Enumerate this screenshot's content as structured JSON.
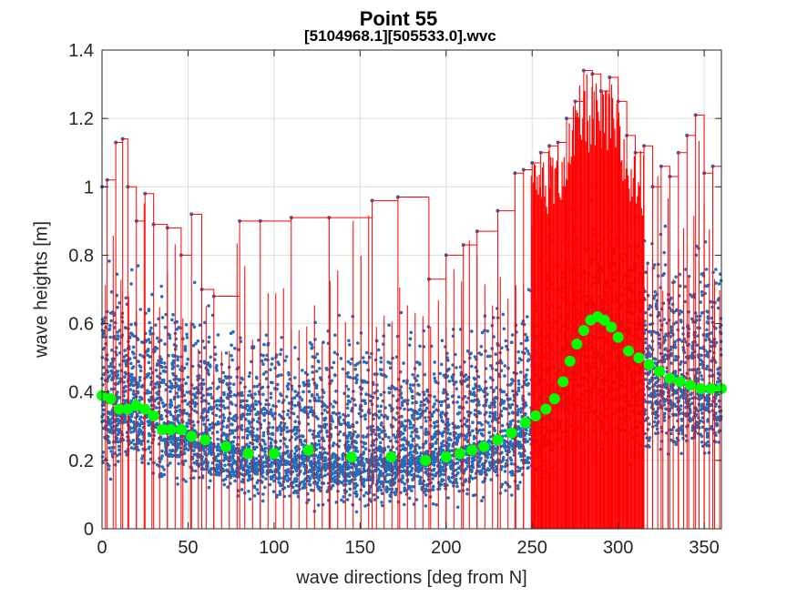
{
  "chart_data": {
    "type": "scatter",
    "title": "Point 55",
    "title_sub": "[5104968.1][505533.0].wvc",
    "xlabel": "wave directions [deg from N]",
    "ylabel": "wave heights [m]",
    "xlim": [
      0,
      360
    ],
    "ylim": [
      0,
      1.4
    ],
    "xticks": [
      "0",
      "50",
      "100",
      "150",
      "200",
      "250",
      "300",
      "350"
    ],
    "yticks": [
      "0",
      "0.2",
      "0.4",
      "0.6",
      "0.8",
      "1",
      "1.2",
      "1.4"
    ],
    "grid": true,
    "colors": {
      "scatter": "#1f6fbf",
      "max_envelope": "#ff0000",
      "mean_curve": "#00ff00",
      "axes": "#262626",
      "grid": "#dcdcdc"
    },
    "series": [
      {
        "role": "scatter",
        "density_profile": {
          "x": [
            0,
            30,
            60,
            90,
            120,
            150,
            180,
            210,
            240,
            260,
            280,
            300,
            320,
            340,
            360
          ],
          "low": [
            0.1,
            0.1,
            0.07,
            0.05,
            0.04,
            0.03,
            0.04,
            0.05,
            0.07,
            0.09,
            0.12,
            0.13,
            0.15,
            0.14,
            0.14
          ],
          "mean": [
            0.39,
            0.34,
            0.26,
            0.22,
            0.22,
            0.21,
            0.21,
            0.24,
            0.28,
            0.36,
            0.56,
            0.54,
            0.46,
            0.42,
            0.41
          ],
          "high": [
            0.85,
            0.8,
            0.72,
            0.65,
            0.66,
            0.68,
            0.64,
            0.66,
            0.8,
            0.98,
            1.1,
            1.05,
            0.96,
            0.92,
            0.95
          ]
        }
      },
      {
        "role": "max_envelope",
        "x": [
          0,
          3,
          8,
          12,
          15,
          20,
          25,
          30,
          38,
          46,
          52,
          58,
          65,
          80,
          92,
          110,
          132,
          157,
          172,
          190,
          200,
          210,
          218,
          230,
          240,
          245,
          250,
          255,
          260,
          265,
          270,
          275,
          280,
          285,
          290,
          295,
          300,
          305,
          310,
          315,
          320,
          325,
          330,
          335,
          340,
          345,
          350,
          355,
          360
        ],
        "y": [
          1.0,
          1.02,
          1.13,
          1.14,
          1.0,
          0.9,
          0.98,
          0.89,
          0.88,
          0.8,
          0.92,
          0.7,
          0.68,
          0.9,
          0.9,
          0.91,
          0.91,
          0.96,
          0.97,
          0.73,
          0.8,
          0.83,
          0.87,
          0.93,
          1.04,
          1.05,
          1.07,
          1.1,
          1.12,
          1.13,
          1.2,
          1.25,
          1.34,
          1.33,
          1.28,
          1.32,
          1.25,
          1.15,
          1.1,
          1.12,
          1.0,
          1.06,
          1.03,
          1.1,
          1.15,
          1.21,
          1.04,
          1.06,
          1.08
        ]
      },
      {
        "role": "mean_curve",
        "x": [
          0,
          5,
          10,
          15,
          20,
          25,
          30,
          35,
          40,
          46,
          52,
          60,
          72,
          85,
          100,
          120,
          145,
          168,
          188,
          200,
          208,
          215,
          222,
          230,
          238,
          246,
          252,
          258,
          263,
          268,
          272,
          276,
          280,
          284,
          288,
          292,
          296,
          300,
          306,
          312,
          318,
          324,
          330,
          336,
          342,
          348,
          354,
          360
        ],
        "y": [
          0.39,
          0.38,
          0.35,
          0.35,
          0.36,
          0.35,
          0.33,
          0.29,
          0.29,
          0.29,
          0.27,
          0.26,
          0.24,
          0.22,
          0.22,
          0.23,
          0.21,
          0.21,
          0.2,
          0.21,
          0.22,
          0.23,
          0.24,
          0.26,
          0.28,
          0.31,
          0.33,
          0.35,
          0.38,
          0.43,
          0.49,
          0.54,
          0.58,
          0.61,
          0.62,
          0.61,
          0.59,
          0.56,
          0.52,
          0.5,
          0.48,
          0.46,
          0.44,
          0.43,
          0.42,
          0.41,
          0.41,
          0.41
        ]
      }
    ]
  }
}
